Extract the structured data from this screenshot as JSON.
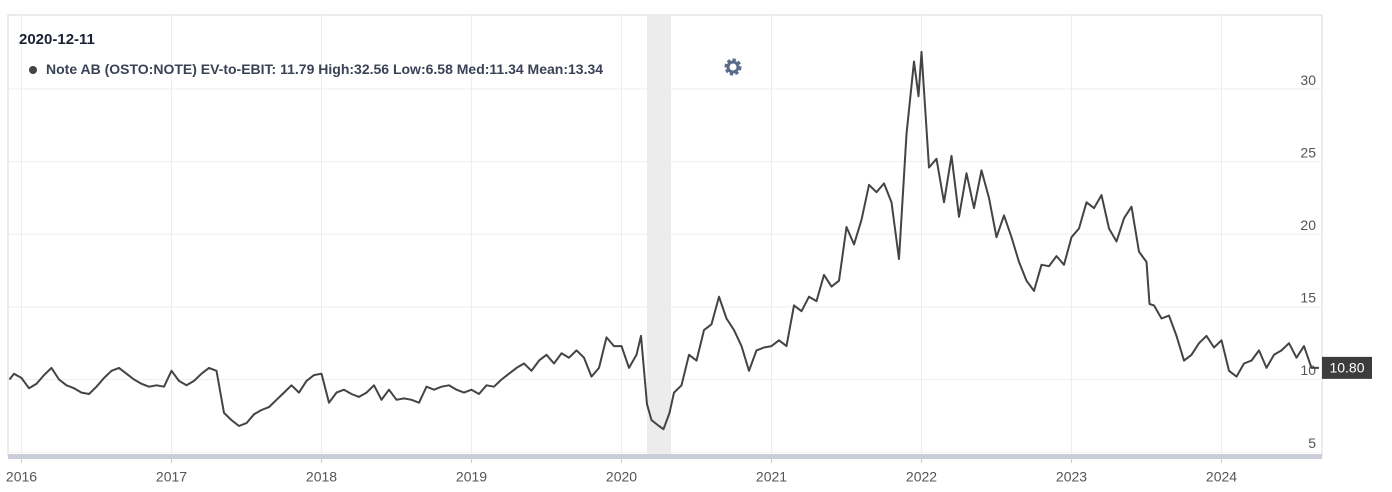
{
  "chart_data": {
    "type": "line",
    "tooltip_date": "2020-12-11",
    "stats_text": "11.79 High:32.56 Low:6.58 Med:11.34 Mean:13.34",
    "last_value_label": "10.80",
    "shade": [
      2020.17,
      2020.33
    ],
    "xlim": [
      2015.91,
      2024.67
    ],
    "xticks": [
      2016,
      2017,
      2018,
      2019,
      2020,
      2021,
      2022,
      2023,
      2024
    ],
    "ylim": [
      4.8,
      35.1
    ],
    "yticks": [
      5,
      10,
      15,
      20,
      25,
      30
    ],
    "grid": true,
    "x": [
      2015.92,
      2015.95,
      2016.0,
      2016.05,
      2016.1,
      2016.15,
      2016.2,
      2016.25,
      2016.3,
      2016.35,
      2016.4,
      2016.45,
      2016.5,
      2016.55,
      2016.6,
      2016.65,
      2016.7,
      2016.75,
      2016.8,
      2016.85,
      2016.9,
      2016.95,
      2017.0,
      2017.05,
      2017.1,
      2017.15,
      2017.2,
      2017.25,
      2017.3,
      2017.35,
      2017.4,
      2017.45,
      2017.5,
      2017.55,
      2017.6,
      2017.65,
      2017.7,
      2017.75,
      2017.8,
      2017.85,
      2017.9,
      2017.95,
      2018.0,
      2018.05,
      2018.1,
      2018.15,
      2018.2,
      2018.25,
      2018.3,
      2018.35,
      2018.4,
      2018.45,
      2018.5,
      2018.55,
      2018.6,
      2018.65,
      2018.7,
      2018.75,
      2018.8,
      2018.85,
      2018.9,
      2018.95,
      2019.0,
      2019.05,
      2019.1,
      2019.15,
      2019.2,
      2019.25,
      2019.3,
      2019.35,
      2019.4,
      2019.45,
      2019.5,
      2019.55,
      2019.6,
      2019.65,
      2019.7,
      2019.75,
      2019.8,
      2019.85,
      2019.9,
      2019.95,
      2020.0,
      2020.05,
      2020.1,
      2020.13,
      2020.17,
      2020.2,
      2020.25,
      2020.28,
      2020.32,
      2020.35,
      2020.4,
      2020.45,
      2020.5,
      2020.55,
      2020.6,
      2020.65,
      2020.7,
      2020.75,
      2020.8,
      2020.85,
      2020.9,
      2020.95,
      2021.0,
      2021.05,
      2021.1,
      2021.15,
      2021.2,
      2021.25,
      2021.3,
      2021.35,
      2021.4,
      2021.45,
      2021.5,
      2021.55,
      2021.6,
      2021.65,
      2021.7,
      2021.75,
      2021.8,
      2021.85,
      2021.9,
      2021.95,
      2021.98,
      2022.0,
      2022.05,
      2022.1,
      2022.15,
      2022.2,
      2022.25,
      2022.3,
      2022.35,
      2022.4,
      2022.45,
      2022.5,
      2022.55,
      2022.6,
      2022.65,
      2022.7,
      2022.75,
      2022.8,
      2022.85,
      2022.9,
      2022.95,
      2023.0,
      2023.05,
      2023.1,
      2023.15,
      2023.2,
      2023.25,
      2023.3,
      2023.35,
      2023.4,
      2023.45,
      2023.5,
      2023.52,
      2023.55,
      2023.6,
      2023.65,
      2023.7,
      2023.75,
      2023.8,
      2023.85,
      2023.9,
      2023.95,
      2024.0,
      2024.05,
      2024.1,
      2024.15,
      2024.2,
      2024.25,
      2024.3,
      2024.35,
      2024.4,
      2024.45,
      2024.5,
      2024.55,
      2024.6,
      2024.65
    ],
    "series": [
      {
        "name": "Note AB (OSTO:NOTE) EV-to-EBIT:",
        "color": "#444444",
        "values": [
          10.0,
          10.4,
          10.1,
          9.4,
          9.7,
          10.3,
          10.8,
          10.0,
          9.6,
          9.4,
          9.1,
          9.0,
          9.5,
          10.1,
          10.6,
          10.8,
          10.4,
          10.0,
          9.7,
          9.5,
          9.6,
          9.5,
          10.6,
          9.9,
          9.6,
          9.9,
          10.4,
          10.8,
          10.6,
          7.7,
          7.2,
          6.8,
          7.0,
          7.6,
          7.9,
          8.1,
          8.6,
          9.1,
          9.6,
          9.1,
          9.9,
          10.3,
          10.4,
          8.4,
          9.1,
          9.3,
          9.0,
          8.8,
          9.1,
          9.6,
          8.6,
          9.3,
          8.6,
          8.7,
          8.6,
          8.4,
          9.5,
          9.3,
          9.5,
          9.6,
          9.3,
          9.1,
          9.3,
          9.0,
          9.6,
          9.5,
          10.0,
          10.4,
          10.8,
          11.1,
          10.6,
          11.3,
          11.7,
          11.1,
          11.8,
          11.5,
          12.0,
          11.5,
          10.2,
          10.8,
          12.9,
          12.3,
          12.3,
          10.8,
          11.7,
          13.0,
          8.3,
          7.2,
          6.8,
          6.58,
          7.7,
          9.1,
          9.6,
          11.7,
          11.3,
          13.4,
          13.8,
          15.7,
          14.2,
          13.4,
          12.3,
          10.6,
          12.0,
          12.2,
          12.3,
          12.7,
          12.3,
          15.1,
          14.7,
          15.7,
          15.4,
          17.2,
          16.4,
          16.8,
          20.5,
          19.3,
          21.0,
          23.4,
          22.9,
          23.5,
          22.2,
          18.3,
          26.9,
          31.9,
          29.5,
          32.56,
          24.6,
          25.2,
          22.2,
          25.4,
          21.2,
          24.2,
          21.8,
          24.4,
          22.5,
          19.8,
          21.3,
          19.8,
          18.1,
          16.8,
          16.1,
          17.9,
          17.8,
          18.5,
          17.9,
          19.8,
          20.4,
          22.2,
          21.8,
          22.7,
          20.4,
          19.5,
          21.1,
          21.9,
          18.8,
          18.1,
          15.2,
          15.1,
          14.2,
          14.4,
          13.0,
          11.3,
          11.7,
          12.5,
          13.0,
          12.2,
          12.7,
          10.6,
          10.2,
          11.1,
          11.3,
          12.0,
          10.8,
          11.7,
          12.0,
          12.5,
          11.5,
          12.3,
          10.8,
          10.8
        ]
      }
    ]
  }
}
